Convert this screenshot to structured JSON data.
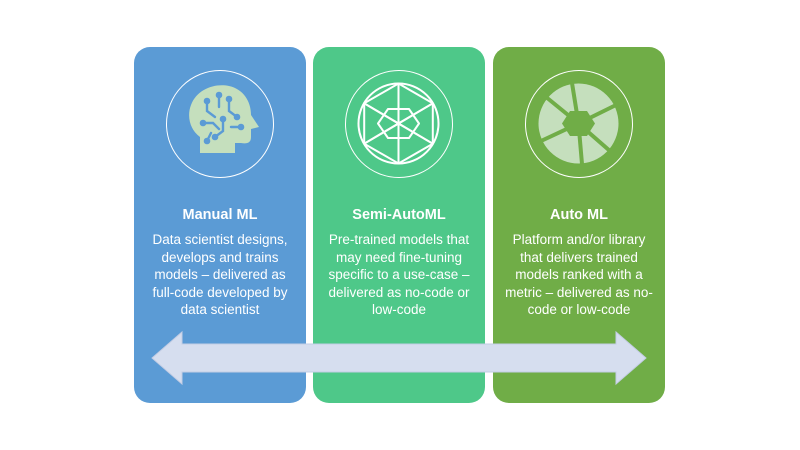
{
  "colors": {
    "manual": "#5b9bd5",
    "semi": "#4ec889",
    "auto": "#70ad47",
    "icon": "#c5dfbd",
    "arrow": "#d6deef"
  },
  "cards": [
    {
      "title": "Manual ML",
      "icon": "head-circuit-icon",
      "description": "Data scientist designs, develops and trains models – delivered as full-code developed by data scientist"
    },
    {
      "title": "Semi-AutoML",
      "icon": "aperture-outline-icon",
      "description": "Pre-trained models that may need fine-tuning specific to a use-case – delivered as no-code or low-code"
    },
    {
      "title": "Auto ML",
      "icon": "aperture-filled-icon",
      "description": "Platform and/or library that delivers trained models ranked with a metric – delivered as no-code or low-code"
    }
  ],
  "arrow": {
    "icon": "double-arrow-icon"
  }
}
